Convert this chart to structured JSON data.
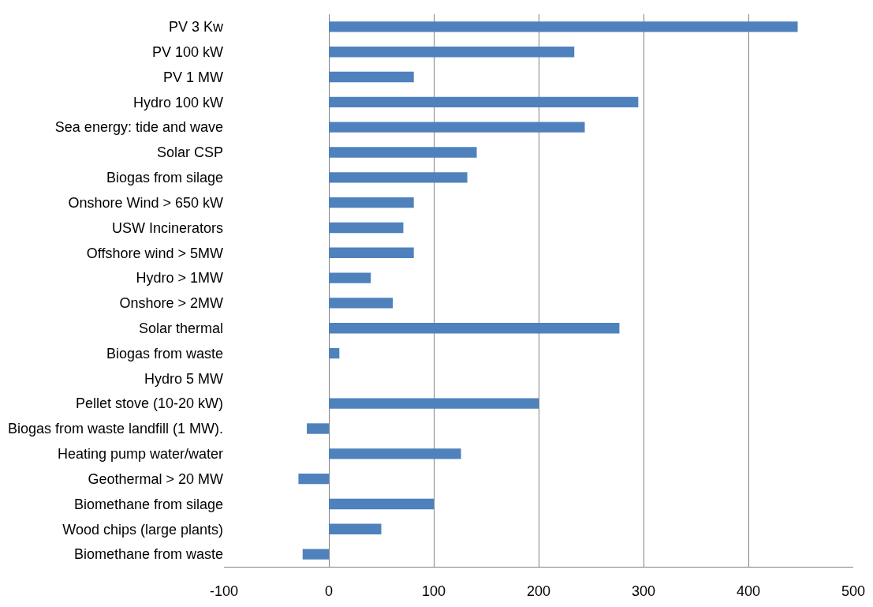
{
  "chart_data": {
    "type": "bar",
    "orientation": "horizontal",
    "categories": [
      "PV 3 Kw",
      "PV 100 kW",
      "PV 1 MW",
      "Hydro 100 kW",
      "Sea energy: tide and wave",
      "Solar CSP",
      "Biogas from silage",
      "Onshore Wind > 650 kW",
      "USW Incinerators",
      "Offshore wind > 5MW",
      "Hydro > 1MW",
      "Onshore > 2MW",
      "Solar thermal",
      "Biogas from waste",
      "Hydro 5 MW",
      "Pellet stove (10-20 kW)",
      "Biogas from waste landfill (1 MW).",
      "Heating pump water/water",
      "Geothermal > 20 MW",
      "Biomethane from silage",
      "Wood chips (large plants)",
      "Biomethane from waste"
    ],
    "values": [
      447,
      234,
      81,
      295,
      244,
      141,
      132,
      81,
      71,
      81,
      40,
      61,
      277,
      10,
      0,
      200,
      -21,
      126,
      -29,
      100,
      50,
      -25
    ],
    "color": "#4f81bd",
    "xlim": [
      -100,
      500
    ],
    "xticks": [
      -100,
      0,
      100,
      200,
      300,
      400,
      500
    ],
    "grid": "x"
  }
}
